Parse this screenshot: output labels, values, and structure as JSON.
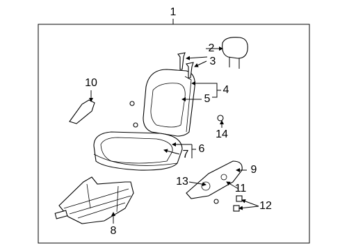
{
  "callouts": [
    "1",
    "2",
    "3",
    "4",
    "5",
    "6",
    "7",
    "8",
    "9",
    "10",
    "11",
    "12",
    "13",
    "14"
  ]
}
